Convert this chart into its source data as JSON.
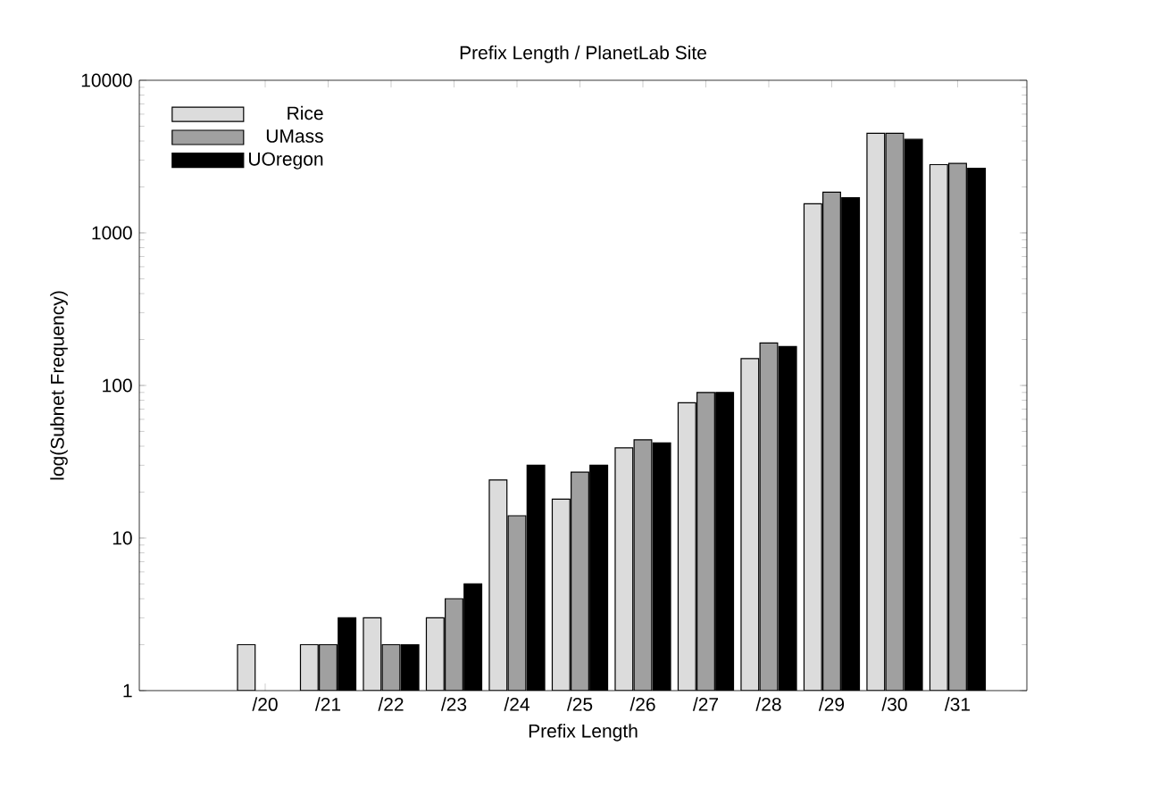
{
  "chart_data": {
    "type": "bar",
    "title": "Prefix Length / PlanetLab Site",
    "xlabel": "Prefix Length",
    "ylabel": "log(Subnet Frequency)",
    "categories": [
      "/20",
      "/21",
      "/22",
      "/23",
      "/24",
      "/25",
      "/26",
      "/27",
      "/28",
      "/29",
      "/30",
      "/31"
    ],
    "series": [
      {
        "name": "Rice",
        "color": "#dcdcdc",
        "values": [
          2,
          2,
          3,
          3,
          24,
          18,
          39,
          77,
          150,
          1550,
          4500,
          2800
        ]
      },
      {
        "name": "UMass",
        "color": "#a0a0a0",
        "values": [
          null,
          2,
          2,
          4,
          14,
          27,
          44,
          90,
          190,
          1850,
          4500,
          2850
        ]
      },
      {
        "name": "UOregon",
        "color": "#000000",
        "values": [
          null,
          3,
          2,
          5,
          30,
          30,
          42,
          90,
          180,
          1700,
          4100,
          2650
        ]
      }
    ],
    "log": "y",
    "ylim": [
      1,
      10000
    ],
    "yticks": [
      1,
      10,
      100,
      1000,
      10000
    ],
    "legend": "top left",
    "grid": false
  }
}
